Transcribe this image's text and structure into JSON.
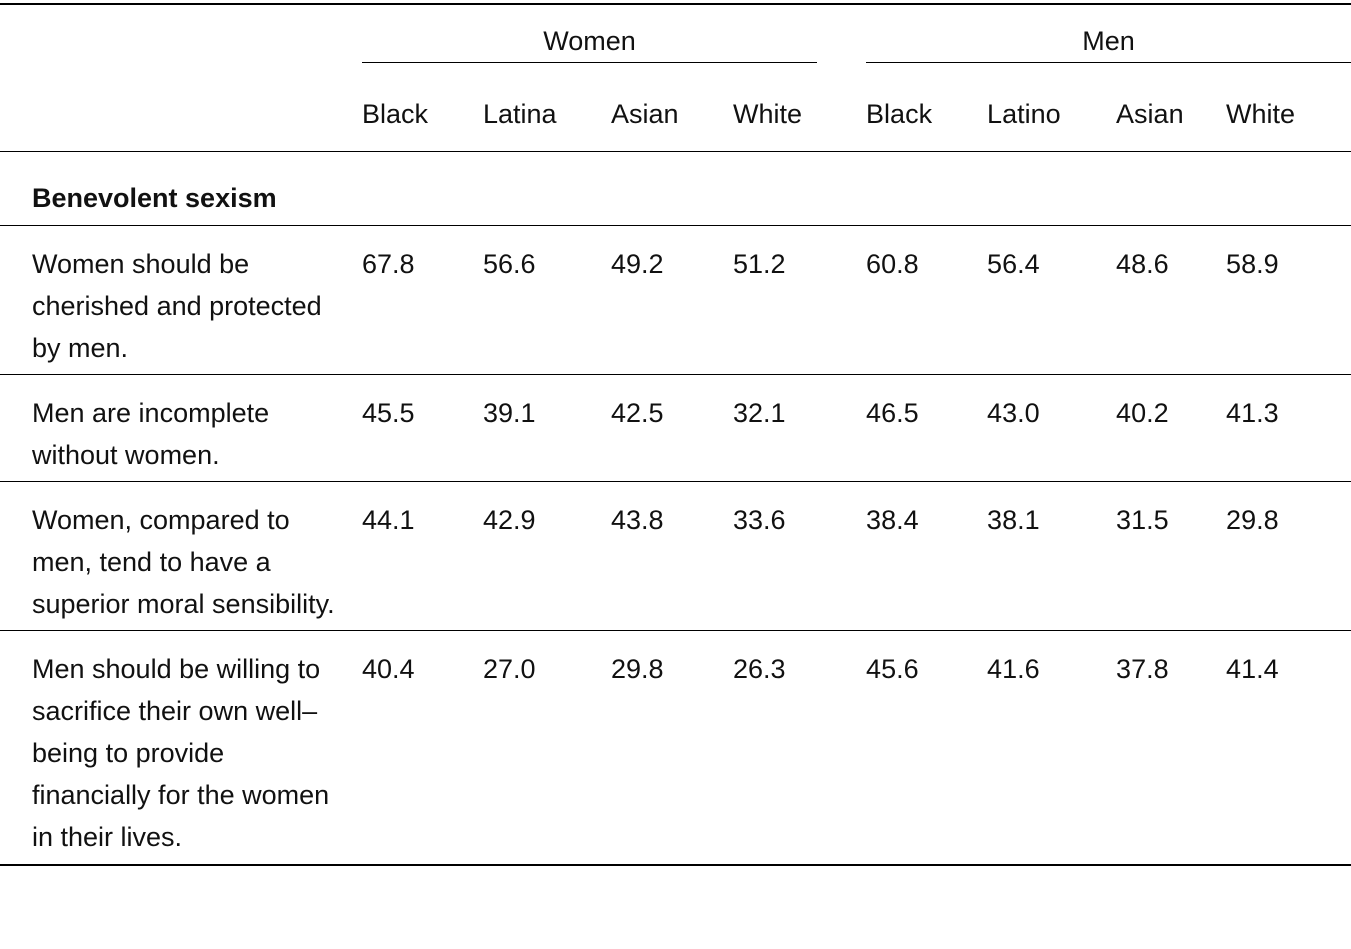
{
  "table": {
    "groups": [
      "Women",
      "Men"
    ],
    "columns": [
      "Black",
      "Latina",
      "Asian",
      "White",
      "Black",
      "Latino",
      "Asian",
      "White"
    ],
    "section": "Benevolent sexism",
    "rows": [
      {
        "label": "Women should be cherished and protected by men.",
        "values": [
          "67.8",
          "56.6",
          "49.2",
          "51.2",
          "60.8",
          "56.4",
          "48.6",
          "58.9"
        ]
      },
      {
        "label": "Men are incomplete without women.",
        "values": [
          "45.5",
          "39.1",
          "42.5",
          "32.1",
          "46.5",
          "43.0",
          "40.2",
          "41.3"
        ]
      },
      {
        "label": "Women, compared to men, tend to have a superior moral sensibility.",
        "values": [
          "44.1",
          "42.9",
          "43.8",
          "33.6",
          "38.4",
          "38.1",
          "31.5",
          "29.8"
        ]
      },
      {
        "label": "Men should be willing to sacrifice their own well–being to provide financially for the women in their lives.",
        "values": [
          "40.4",
          "27.0",
          "29.8",
          "26.3",
          "45.6",
          "41.6",
          "37.8",
          "41.4"
        ]
      }
    ]
  }
}
